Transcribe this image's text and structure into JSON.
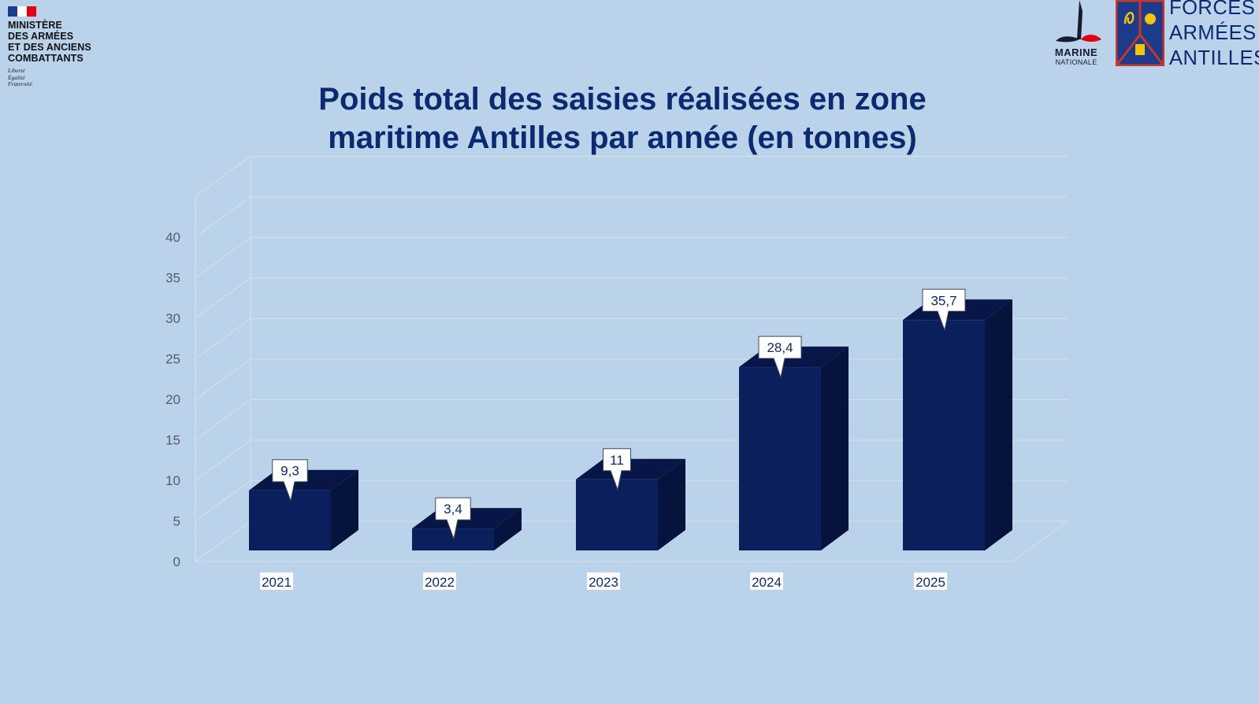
{
  "header": {
    "ministry": [
      "MINISTÈRE",
      "DES ARMÉES",
      "ET DES ANCIENS",
      "COMBATTANTS"
    ],
    "motto": [
      "Liberté",
      "Égalité",
      "Fraternité"
    ],
    "marine": [
      "MARINE",
      "NATIONALE"
    ],
    "faa": [
      "FORCES",
      "ARMÉES",
      "ANTILLES"
    ]
  },
  "colors": {
    "background": "#bad2ea",
    "bar_front": "#0a1f5c",
    "bar_top": "#071646",
    "bar_side": "#06133d",
    "title": "#0c2a70"
  },
  "chart_data": {
    "type": "bar",
    "title": "Poids total des saisies réalisées en zone maritime Antilles par année (en tonnes)",
    "title_lines": [
      "Poids total des saisies réalisées en zone",
      "maritime Antilles par année (en tonnes)"
    ],
    "categories": [
      "2021",
      "2022",
      "2023",
      "2024",
      "2025"
    ],
    "values": [
      9.3,
      3.4,
      11,
      28.4,
      35.7
    ],
    "value_labels": [
      "9,3",
      "3,4",
      "11",
      "28,4",
      "35,7"
    ],
    "yticks": [
      "0",
      "5",
      "10",
      "15",
      "20",
      "25",
      "30",
      "35",
      "40"
    ],
    "ylim": [
      0,
      45
    ],
    "xlabel": "",
    "ylabel": "",
    "grid": true,
    "style": "3d-column"
  }
}
